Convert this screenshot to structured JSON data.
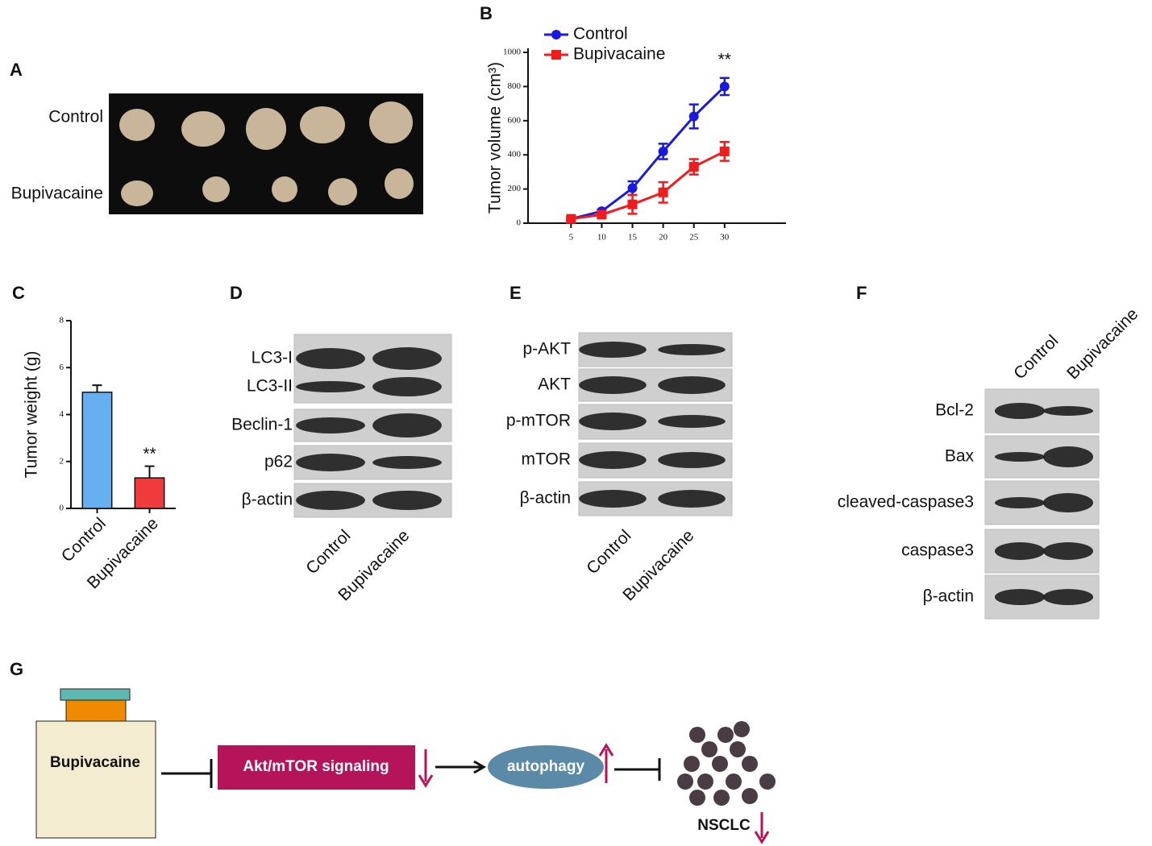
{
  "panel_letters": [
    "A",
    "B",
    "C",
    "D",
    "E",
    "F",
    "G"
  ],
  "photo": {
    "rows": [
      "Control",
      "Bupivacaine"
    ]
  },
  "chart_data": [
    {
      "type": "line",
      "y_label": "Tumor volume (cm³)",
      "x": [
        5,
        10,
        15,
        20,
        25,
        30
      ],
      "xlim": [
        -2,
        40
      ],
      "xticks": [
        5,
        10,
        15,
        20,
        25,
        30
      ],
      "ylim": [
        0,
        1000
      ],
      "yticks": [
        0,
        200,
        400,
        600,
        800,
        1000
      ],
      "series": [
        {
          "name": "Control",
          "color": "#1a1adf",
          "marker": "circle",
          "values": [
            25,
            70,
            205,
            420,
            625,
            800
          ],
          "errors": [
            10,
            10,
            40,
            45,
            70,
            50
          ]
        },
        {
          "name": "Bupivacaine",
          "color": "#ee1c1c",
          "marker": "square",
          "values": [
            25,
            50,
            110,
            180,
            330,
            420
          ],
          "errors": [
            10,
            10,
            55,
            60,
            45,
            55
          ]
        }
      ],
      "annotation": "**"
    },
    {
      "type": "bar",
      "y_label": "Tumor weight (g)",
      "categories": [
        "Control",
        "Bupivacaine"
      ],
      "values": [
        4.95,
        1.3
      ],
      "errors": [
        0.3,
        0.5
      ],
      "colors": [
        "#66b0f2",
        "#ef3b3b"
      ],
      "ylim": [
        0,
        8
      ],
      "yticks": [
        0,
        2,
        4,
        6,
        8
      ],
      "annotation": "**"
    }
  ],
  "blots": [
    {
      "rows": [
        "LC3-I",
        "LC3-II",
        "Beclin-1",
        "p62",
        "β-actin"
      ],
      "columns": [
        "Control",
        "Bupivacaine"
      ]
    },
    {
      "rows": [
        "p-AKT",
        "AKT",
        "p-mTOR",
        "mTOR",
        "β-actin"
      ],
      "columns": [
        "Control",
        "Bupivacaine"
      ]
    },
    {
      "rows": [
        "Bcl-2",
        "Bax",
        "cleaved-caspase3",
        "caspase3",
        "β-actin"
      ],
      "columns": [
        "Control",
        "Bupivacaine"
      ]
    }
  ],
  "diagram": {
    "drug": "Bupivacaine",
    "pathway": "Akt/mTOR signaling",
    "process": "autophagy",
    "outcome": "NSCLC"
  }
}
